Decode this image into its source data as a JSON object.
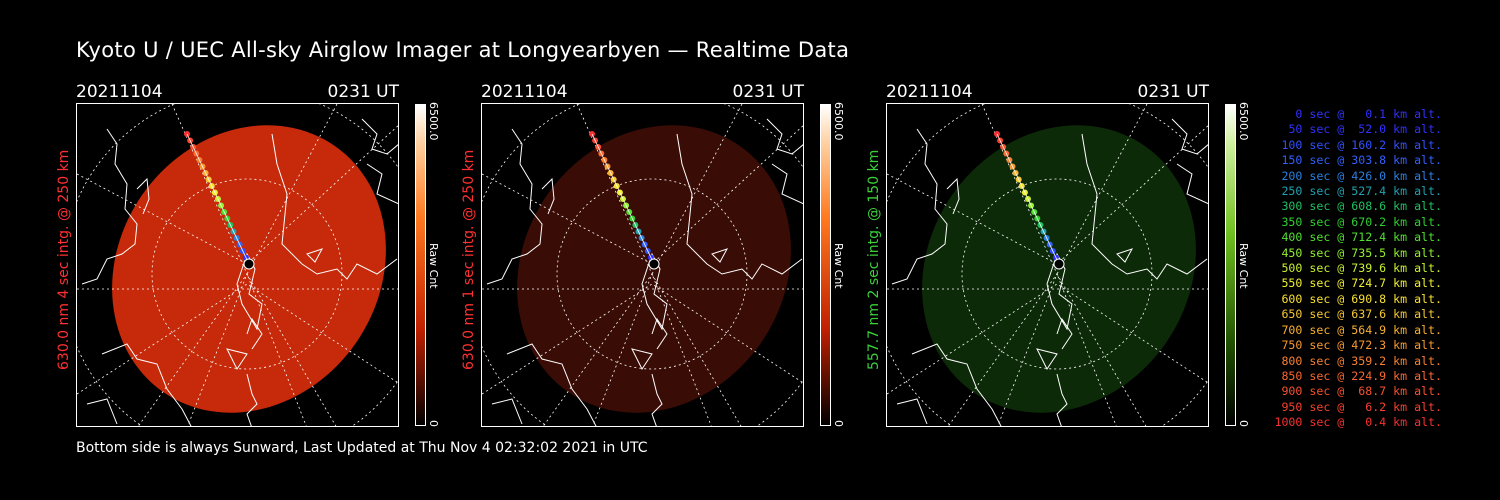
{
  "title": "Kyoto U / UEC All-sky Airglow Imager at Longyearbyen — Realtime Data",
  "footer": "Bottom side is always Sunward, Last Updated at Thu Nov  4 02:32:02 2021 in UTC",
  "panels": [
    {
      "date": "20211104",
      "time": "0231 UT",
      "side_label": "630.0 nm 4 sec intg. @ 250 km",
      "side_color": "#ff3030",
      "colorbar_max": "6500.0",
      "colorbar_min": "0",
      "colorbar_label": "Raw Cnt",
      "colormap": "red",
      "image_color": "#c62a0a",
      "image_level": 0.85
    },
    {
      "date": "20211104",
      "time": "0231 UT",
      "side_label": "630.0 nm 1 sec intg. @ 250 km",
      "side_color": "#ff3030",
      "colorbar_max": "6500.0",
      "colorbar_min": "0",
      "colorbar_label": "Raw Cnt",
      "colormap": "red",
      "image_color": "#3a0c06",
      "image_level": 0.2
    },
    {
      "date": "20211104",
      "time": "0231 UT",
      "side_label": "557.7 nm 2 sec intg. @ 150 km",
      "side_color": "#3ad03a",
      "colorbar_max": "6500.0",
      "colorbar_min": "0",
      "colorbar_label": "Raw Cnt",
      "colormap": "green",
      "image_color": "#0c2a08",
      "image_level": 0.15
    }
  ],
  "legend": [
    {
      "text": "0 sec @   0.1 km alt.",
      "color": "#3030ff"
    },
    {
      "text": "50 sec @  52.0 km alt.",
      "color": "#3030ff"
    },
    {
      "text": "100 sec @ 160.2 km alt.",
      "color": "#3050ff"
    },
    {
      "text": "150 sec @ 303.8 km alt.",
      "color": "#3060ff"
    },
    {
      "text": "200 sec @ 426.0 km alt.",
      "color": "#2a80e0"
    },
    {
      "text": "250 sec @ 527.4 km alt.",
      "color": "#20a0b0"
    },
    {
      "text": "300 sec @ 608.6 km alt.",
      "color": "#20c060"
    },
    {
      "text": "350 sec @ 670.2 km alt.",
      "color": "#30d030"
    },
    {
      "text": "400 sec @ 712.4 km alt.",
      "color": "#50e030"
    },
    {
      "text": "450 sec @ 735.5 km alt.",
      "color": "#90f030"
    },
    {
      "text": "500 sec @ 739.6 km alt.",
      "color": "#c8f030"
    },
    {
      "text": "550 sec @ 724.7 km alt.",
      "color": "#f0f030"
    },
    {
      "text": "600 sec @ 690.8 km alt.",
      "color": "#f8e030"
    },
    {
      "text": "650 sec @ 637.6 km alt.",
      "color": "#f8c830"
    },
    {
      "text": "700 sec @ 564.9 km alt.",
      "color": "#f8b030"
    },
    {
      "text": "750 sec @ 472.3 km alt.",
      "color": "#f89830"
    },
    {
      "text": "800 sec @ 359.2 km alt.",
      "color": "#f88030"
    },
    {
      "text": "850 sec @ 224.9 km alt.",
      "color": "#f86830"
    },
    {
      "text": "900 sec @  68.7 km alt.",
      "color": "#f85030"
    },
    {
      "text": "950 sec @   6.2 km alt.",
      "color": "#f84030"
    },
    {
      "text": "1000 sec @   0.4 km alt.",
      "color": "#f83030"
    }
  ]
}
